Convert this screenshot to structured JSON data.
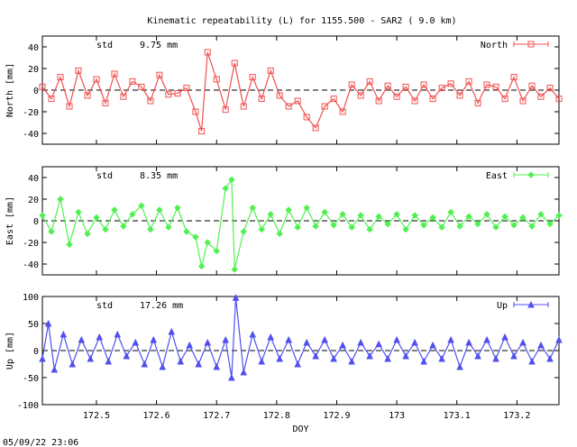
{
  "figure": {
    "title": "Kinematic repeatability (L) for 1155.500 - SAR2  (  9.0 km)",
    "timestamp": "05/09/22 23:06"
  },
  "chart_data": [
    {
      "type": "line",
      "name": "North",
      "ylabel": "North [mm]",
      "xlabel": "",
      "std_label": "std",
      "std_value": "9.75 mm",
      "xlim": [
        172.41,
        173.27
      ],
      "ylim": [
        -50,
        50
      ],
      "yticks": [
        -40,
        -20,
        0,
        20,
        40
      ],
      "xticks": [
        172.5,
        172.6,
        172.7,
        172.8,
        172.9,
        173,
        173.1,
        173.2
      ],
      "xtick_labels": [],
      "legend": "North",
      "legend_position": "top-right",
      "color": "#f05050",
      "marker": "square",
      "zero_line": true,
      "x": [
        172.41,
        172.425,
        172.44,
        172.455,
        172.47,
        172.485,
        172.5,
        172.515,
        172.53,
        172.545,
        172.56,
        172.575,
        172.59,
        172.605,
        172.62,
        172.635,
        172.65,
        172.665,
        172.675,
        172.685,
        172.7,
        172.715,
        172.73,
        172.745,
        172.76,
        172.775,
        172.79,
        172.805,
        172.82,
        172.835,
        172.85,
        172.865,
        172.88,
        172.895,
        172.91,
        172.925,
        172.94,
        172.955,
        172.97,
        172.985,
        173.0,
        173.015,
        173.03,
        173.045,
        173.06,
        173.075,
        173.09,
        173.105,
        173.12,
        173.135,
        173.15,
        173.165,
        173.18,
        173.195,
        173.21,
        173.225,
        173.24,
        173.255,
        173.27
      ],
      "y": [
        3,
        -8,
        12,
        -15,
        18,
        -5,
        10,
        -12,
        15,
        -6,
        8,
        3,
        -10,
        14,
        -4,
        -3,
        2,
        -20,
        -38,
        35,
        10,
        -18,
        25,
        -15,
        12,
        -8,
        18,
        -5,
        -15,
        -10,
        -25,
        -35,
        -15,
        -8,
        -20,
        5,
        -5,
        8,
        -10,
        4,
        -6,
        3,
        -10,
        5,
        -8,
        2,
        6,
        -5,
        8,
        -12,
        5,
        3,
        -8,
        12,
        -10,
        4,
        -6,
        2,
        -8
      ]
    },
    {
      "type": "line",
      "name": "East",
      "ylabel": "East [mm]",
      "xlabel": "",
      "std_label": "std",
      "std_value": "8.35 mm",
      "xlim": [
        172.41,
        173.27
      ],
      "ylim": [
        -50,
        50
      ],
      "yticks": [
        -40,
        -20,
        0,
        20,
        40
      ],
      "xticks": [
        172.5,
        172.6,
        172.7,
        172.8,
        172.9,
        173,
        173.1,
        173.2
      ],
      "xtick_labels": [],
      "legend": "East",
      "legend_position": "top-right",
      "color": "#50f050",
      "marker": "diamond",
      "zero_line": true,
      "x": [
        172.41,
        172.425,
        172.44,
        172.455,
        172.47,
        172.485,
        172.5,
        172.515,
        172.53,
        172.545,
        172.56,
        172.575,
        172.59,
        172.605,
        172.62,
        172.635,
        172.65,
        172.665,
        172.675,
        172.685,
        172.7,
        172.715,
        172.725,
        172.73,
        172.745,
        172.76,
        172.775,
        172.79,
        172.805,
        172.82,
        172.835,
        172.85,
        172.865,
        172.88,
        172.895,
        172.91,
        172.925,
        172.94,
        172.955,
        172.97,
        172.985,
        173.0,
        173.015,
        173.03,
        173.045,
        173.06,
        173.075,
        173.09,
        173.105,
        173.12,
        173.135,
        173.15,
        173.165,
        173.18,
        173.195,
        173.21,
        173.225,
        173.24,
        173.255,
        173.27
      ],
      "y": [
        5,
        -10,
        20,
        -22,
        8,
        -12,
        3,
        -8,
        10,
        -5,
        6,
        14,
        -8,
        10,
        -6,
        12,
        -10,
        -15,
        -42,
        -20,
        -28,
        30,
        38,
        -45,
        -10,
        12,
        -8,
        6,
        -12,
        10,
        -6,
        12,
        -5,
        8,
        -4,
        6,
        -6,
        5,
        -8,
        4,
        -3,
        6,
        -8,
        5,
        -4,
        3,
        -6,
        8,
        -5,
        4,
        -3,
        6,
        -6,
        4,
        -4,
        3,
        -5,
        6,
        -3,
        5
      ]
    },
    {
      "type": "line",
      "name": "Up",
      "ylabel": "Up [mm]",
      "xlabel": "DOY",
      "std_label": "std",
      "std_value": "17.26 mm",
      "xlim": [
        172.41,
        173.27
      ],
      "ylim": [
        -100,
        100
      ],
      "yticks": [
        -100,
        -50,
        0,
        50,
        100
      ],
      "xticks": [
        172.5,
        172.6,
        172.7,
        172.8,
        172.9,
        173,
        173.1,
        173.2
      ],
      "xtick_labels": [
        "172.5",
        "172.6",
        "172.7",
        "172.8",
        "172.9",
        "173",
        "173.1",
        "173.2"
      ],
      "legend": "Up",
      "legend_position": "top-right",
      "color": "#5050f0",
      "marker": "triangle",
      "zero_line": true,
      "x": [
        172.41,
        172.42,
        172.43,
        172.445,
        172.46,
        172.475,
        172.49,
        172.505,
        172.52,
        172.535,
        172.55,
        172.565,
        172.58,
        172.595,
        172.61,
        172.625,
        172.64,
        172.655,
        172.67,
        172.685,
        172.7,
        172.715,
        172.725,
        172.732,
        172.745,
        172.76,
        172.775,
        172.79,
        172.805,
        172.82,
        172.835,
        172.85,
        172.865,
        172.88,
        172.895,
        172.91,
        172.925,
        172.94,
        172.955,
        172.97,
        172.985,
        173.0,
        173.015,
        173.03,
        173.045,
        173.06,
        173.075,
        173.09,
        173.105,
        173.12,
        173.135,
        173.15,
        173.165,
        173.18,
        173.195,
        173.21,
        173.225,
        173.24,
        173.255,
        173.27
      ],
      "y": [
        -15,
        50,
        -35,
        30,
        -25,
        20,
        -15,
        25,
        -20,
        30,
        -10,
        15,
        -25,
        20,
        -30,
        35,
        -20,
        10,
        -25,
        15,
        -30,
        20,
        -50,
        98,
        -40,
        30,
        -20,
        25,
        -15,
        20,
        -25,
        15,
        -10,
        20,
        -15,
        10,
        -20,
        15,
        -10,
        12,
        -15,
        20,
        -10,
        15,
        -20,
        10,
        -15,
        20,
        -30,
        15,
        -10,
        20,
        -15,
        25,
        -10,
        15,
        -20,
        10,
        -15,
        20
      ]
    }
  ]
}
